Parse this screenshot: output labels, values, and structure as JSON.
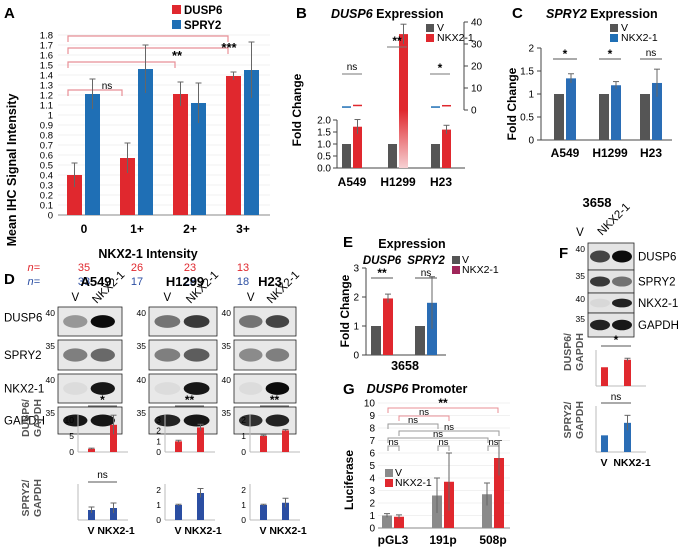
{
  "colors": {
    "red": "#e0282e",
    "blue": "#1f6fb5",
    "gray": "#555555",
    "pink": "#e88f96",
    "lightblue": "#2a6db5",
    "navy": "#2b4ea2",
    "magenta": "#a0265a"
  },
  "A": {
    "letter": "A",
    "ylabel": "Mean IHC Signal Intensity",
    "xlabel": "NKX2-1 Intensity",
    "n_prefix": "n=",
    "n_dusp6": [
      "35",
      "26",
      "23",
      "13"
    ],
    "n_spry2": [
      "33",
      "17",
      "28",
      "18"
    ],
    "sig": [
      "ns",
      "**",
      "***"
    ]
  },
  "B": {
    "letter": "B",
    "title_italic": "DUSP6",
    "title_rest": " Expression",
    "ylabel": "Fold Change",
    "sig": [
      "ns",
      "**",
      "*"
    ],
    "upper_ticks": [
      "0",
      "10",
      "20",
      "30",
      "40"
    ],
    "lower_ticks": [
      "0.0",
      "0.5",
      "1.0",
      "1.5",
      "2.0"
    ]
  },
  "C": {
    "letter": "C",
    "title_italic": "SPRY2",
    "title_rest": " Expression",
    "ylabel": "Fold Change",
    "sig": [
      "*",
      "*",
      "ns"
    ]
  },
  "D": {
    "letter": "D",
    "cell_lines": [
      "A549",
      "H1299",
      "H23"
    ],
    "lane_labels": [
      "V",
      "NKX2-1"
    ],
    "blot_labels": [
      "DUSP6",
      "SPRY2",
      "NKX2-1",
      "GAPDH"
    ],
    "markers": {
      "a549": [
        "40",
        "35",
        "40",
        "35"
      ],
      "h1299": [
        "40",
        "35",
        "40",
        "35"
      ],
      "h23": [
        "40",
        "35",
        "40",
        "35"
      ]
    },
    "quant_label_dusp6": "DUSP6/",
    "quant_label_spry2": "SPRY2/",
    "quant_label_gapdh": "GAPDH",
    "sig_dusp6": [
      "*",
      "**",
      "**"
    ],
    "sig_spry2": [
      "ns",
      "",
      ""
    ],
    "xlabels": [
      "V",
      "NKX2-1"
    ],
    "ticks_a549_top": [
      "0",
      "5",
      "10"
    ],
    "ticks_h1299_top": [
      "0",
      "1",
      "2",
      "3"
    ],
    "ticks_h23_top": [
      "0",
      "1",
      "2"
    ],
    "ticks_h1299_bot": [
      "0",
      "1",
      "2"
    ],
    "ticks_h23_bot": [
      "0",
      "1",
      "2"
    ]
  },
  "E": {
    "letter": "E",
    "title": "Expression",
    "gene1": "DUSP6",
    "gene2": "SPRY2",
    "ylabel": "Fold Change",
    "xlabel": "3658",
    "sig": [
      "**",
      "ns"
    ]
  },
  "F": {
    "letter": "F",
    "cell_line": "3658",
    "lane_labels": [
      "V",
      "NKX2-1"
    ],
    "blot_labels": [
      "DUSP6",
      "SPRY2",
      "NKX2-1",
      "GAPDH"
    ],
    "markers": [
      "40",
      "35",
      "40",
      "35"
    ],
    "quant1": [
      "DUSP6/",
      "GAPDH"
    ],
    "quant2": [
      "SPRY2/",
      "GAPDH"
    ],
    "sig": [
      "*",
      "ns"
    ],
    "xlabels": [
      "V",
      "NKX2-1"
    ]
  },
  "G": {
    "letter": "G",
    "title_italic": "DUSP6",
    "title_rest": " Promoter",
    "ylabel": "Luciferase",
    "legend": [
      "V",
      "NKX2-1"
    ],
    "sig_top": "**",
    "sig_ns": "ns"
  },
  "chart_data": [
    {
      "type": "bar",
      "panel": "A",
      "title": "",
      "xlabel": "NKX2-1 Intensity",
      "ylabel": "Mean IHC Signal Intensity",
      "categories": [
        "0",
        "1+",
        "2+",
        "3+"
      ],
      "series": [
        {
          "name": "DUSP6",
          "values": [
            0.4,
            0.57,
            1.21,
            1.39
          ],
          "errors": [
            0.12,
            0.15,
            0.12,
            0.04
          ]
        },
        {
          "name": "SPRY2",
          "values": [
            1.21,
            1.46,
            1.12,
            1.45
          ],
          "errors": [
            0.15,
            0.24,
            0.2,
            0.28
          ]
        }
      ],
      "yticks": [
        "0",
        "0.1",
        "0.2",
        "0.3",
        "0.4",
        "0.5",
        "0.6",
        "0.7",
        "0.8",
        "0.9",
        "1",
        "1.1",
        "1.2",
        "1.3",
        "1.4",
        "1.5",
        "1.6",
        "1.7",
        "1.8"
      ],
      "ylim": [
        0,
        1.8
      ],
      "legend": [
        "DUSP6",
        "SPRY2"
      ]
    },
    {
      "type": "bar",
      "panel": "B",
      "title": "DUSP6 Expression",
      "ylabel": "Fold Change",
      "categories": [
        "A549",
        "H1299",
        "H23"
      ],
      "series": [
        {
          "name": "V",
          "values": [
            1.0,
            1.0,
            1.0
          ],
          "errors": [
            0,
            0,
            0
          ]
        },
        {
          "name": "NKX2-1",
          "values": [
            1.72,
            34.5,
            1.6
          ],
          "errors": [
            0.3,
            4.5,
            0.18
          ]
        }
      ],
      "ylim_lower": [
        0,
        2.0
      ],
      "ylim_upper": [
        0,
        40
      ],
      "legend": [
        "V",
        "NKX2-1"
      ]
    },
    {
      "type": "bar",
      "panel": "C",
      "title": "SPRY2 Expression",
      "ylabel": "Fold Change",
      "categories": [
        "A549",
        "H1299",
        "H23"
      ],
      "series": [
        {
          "name": "V",
          "values": [
            1.0,
            1.0,
            1.0
          ],
          "errors": [
            0,
            0,
            0
          ]
        },
        {
          "name": "NKX2-1",
          "values": [
            1.34,
            1.19,
            1.24
          ],
          "errors": [
            0.1,
            0.08,
            0.3
          ]
        }
      ],
      "yticks": [
        "0",
        "0.5",
        "1",
        "1.5",
        "2"
      ],
      "ylim": [
        0,
        2
      ],
      "legend": [
        "V",
        "NKX2-1"
      ]
    },
    {
      "type": "bar",
      "panel": "E",
      "title": "Expression",
      "ylabel": "Fold Change",
      "xlabel": "3658",
      "categories": [
        "DUSP6",
        "SPRY2"
      ],
      "series": [
        {
          "name": "V",
          "values": [
            1.0,
            1.0
          ],
          "errors": [
            0,
            0
          ]
        },
        {
          "name": "NKX2-1",
          "values": [
            1.95,
            1.8
          ],
          "errors": [
            0.15,
            0.9
          ]
        }
      ],
      "yticks": [
        "0",
        "1",
        "2",
        "3"
      ],
      "ylim": [
        0,
        3
      ],
      "legend": [
        "V",
        "NKX2-1"
      ]
    },
    {
      "type": "bar",
      "panel": "G",
      "title": "DUSP6 Promoter",
      "ylabel": "Luciferase",
      "categories": [
        "pGL3",
        "191p",
        "508p"
      ],
      "series": [
        {
          "name": "V",
          "values": [
            1.0,
            2.6,
            2.7
          ],
          "errors": [
            0.15,
            1.4,
            0.9
          ]
        },
        {
          "name": "NKX2-1",
          "values": [
            0.9,
            3.7,
            5.6
          ],
          "errors": [
            0.15,
            2.3,
            1.4
          ]
        }
      ],
      "yticks": [
        "0",
        "1",
        "2",
        "3",
        "4",
        "5",
        "6",
        "7",
        "8",
        "9",
        "10"
      ],
      "ylim": [
        0,
        10
      ],
      "legend": [
        "V",
        "NKX2-1"
      ]
    },
    {
      "type": "bar",
      "panel": "D-quant",
      "title": "A549 / H1299 / H23 densitometry",
      "categories": [
        "V",
        "NKX2-1"
      ],
      "series": [
        {
          "name": "A549 DUSP6/GAPDH",
          "values": [
            1.0,
            8.5
          ],
          "errors": [
            0.2,
            3.0
          ]
        },
        {
          "name": "H1299 DUSP6/GAPDH",
          "values": [
            1.0,
            2.3
          ],
          "errors": [
            0.1,
            0.3
          ]
        },
        {
          "name": "H23 DUSP6/GAPDH",
          "values": [
            1.0,
            1.35
          ],
          "errors": [
            0.05,
            0.06
          ]
        },
        {
          "name": "A549 SPRY2/GAPDH",
          "values": [
            1.0,
            1.2
          ],
          "errors": [
            0.3,
            0.5
          ]
        },
        {
          "name": "H1299 SPRY2/GAPDH",
          "values": [
            1.0,
            1.8
          ],
          "errors": [
            0.05,
            0.3
          ]
        },
        {
          "name": "H23 SPRY2/GAPDH",
          "values": [
            1.0,
            1.15
          ],
          "errors": [
            0.05,
            0.3
          ]
        }
      ]
    },
    {
      "type": "bar",
      "panel": "F-quant",
      "title": "3658 densitometry",
      "categories": [
        "V",
        "NKX2-1"
      ],
      "series": [
        {
          "name": "DUSP6/GAPDH",
          "values": [
            1.0,
            1.4
          ],
          "errors": [
            0.0,
            0.08
          ]
        },
        {
          "name": "SPRY2/GAPDH",
          "values": [
            1.0,
            1.75
          ],
          "errors": [
            0.0,
            0.45
          ]
        }
      ]
    }
  ]
}
